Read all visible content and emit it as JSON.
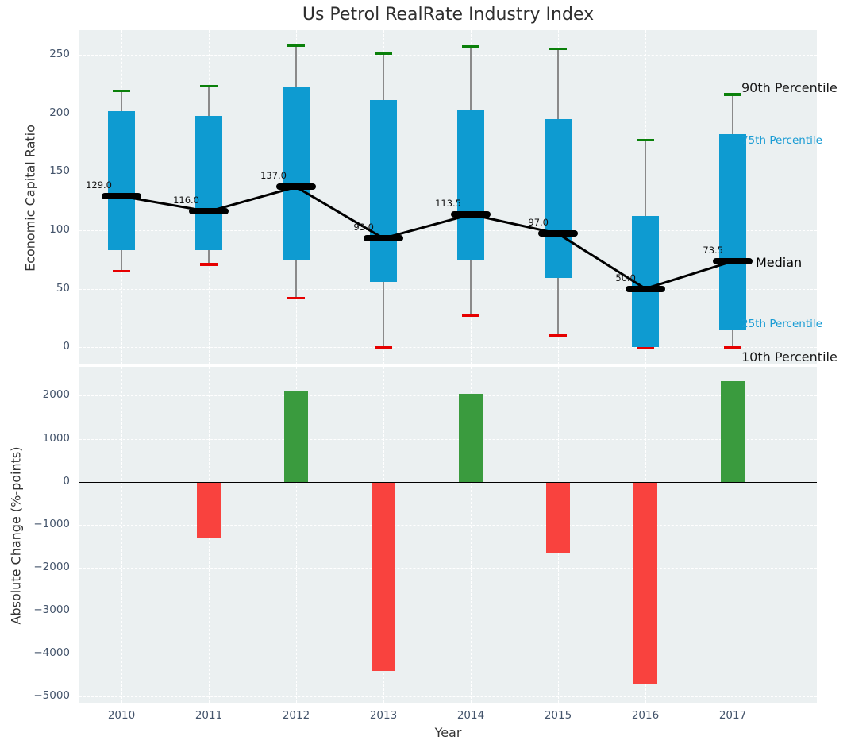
{
  "figure": {
    "title": "Us Petrol RealRate Industry Index",
    "plot_background": "#ebf0f1",
    "tick_color": "#44546b",
    "axis_label_color": "#333333"
  },
  "chart_data": [
    {
      "type": "box-whisker-with-median-line",
      "title": "Us Petrol RealRate Industry Index",
      "ylabel": "Economic Capital Ratio",
      "categories": [
        "2010",
        "2011",
        "2012",
        "2013",
        "2014",
        "2015",
        "2016",
        "2017"
      ],
      "series": [
        {
          "name": "90th Percentile",
          "role": "whisker-top-cap",
          "color": "#0a800a",
          "values": [
            219,
            223,
            258,
            251,
            257,
            255,
            177,
            216
          ]
        },
        {
          "name": "75th Percentile",
          "role": "box-top",
          "color": "#0e9bd1",
          "values": [
            202,
            198,
            222,
            211,
            203,
            195,
            112,
            182
          ]
        },
        {
          "name": "Median",
          "role": "median-line",
          "color": "#000000",
          "values": [
            129,
            116,
            137,
            93,
            113.5,
            97,
            50,
            73.5
          ]
        },
        {
          "name": "25th Percentile",
          "role": "box-bottom",
          "color": "#0e9bd1",
          "values": [
            83,
            83,
            75,
            56,
            75,
            59,
            0,
            15
          ]
        },
        {
          "name": "10th Percentile",
          "role": "whisker-bottom-cap",
          "color": "#e60000",
          "values": [
            65,
            71,
            42,
            0,
            27,
            10,
            0,
            0
          ]
        }
      ],
      "median_point_labels": [
        "129.0",
        "116.0",
        "137.0",
        "93.0",
        "113.5",
        "97.0",
        "50.0",
        "73.5"
      ],
      "right_labels": [
        {
          "text": "90th Percentile",
          "anchor_value": 221.5,
          "color": "#1a1a1a",
          "size": 16
        },
        {
          "text": "75th Percentile",
          "anchor_value": 176.5,
          "color": "#1a9cd4",
          "size": 13.5
        },
        {
          "text": "Median",
          "anchor_value": 72,
          "color": "#000000",
          "size": 16
        },
        {
          "text": "25th Percentile",
          "anchor_value": 19.5,
          "color": "#1a9cd4",
          "size": 13.5
        },
        {
          "text": "10th Percentile",
          "anchor_value": -8.5,
          "color": "#1a1a1a",
          "size": 16
        }
      ],
      "yticks": {
        "values": [
          250,
          200,
          150,
          100,
          50,
          0
        ],
        "labels": [
          "250",
          "200",
          "150",
          "100",
          "50",
          "0"
        ]
      },
      "ylim": [
        -15,
        271
      ],
      "grid": true,
      "box_color": "#0e9bd1",
      "whisker_color": "#8a8a8a"
    },
    {
      "type": "bar",
      "ylabel": "Absolute Change (%-points)",
      "xlabel": "Year",
      "categories": [
        "2010",
        "2011",
        "2012",
        "2013",
        "2014",
        "2015",
        "2016",
        "2017"
      ],
      "values": [
        null,
        -1300,
        2100,
        -4400,
        2050,
        -1650,
        -4700,
        2350
      ],
      "bar_colors": {
        "positive": "#3a9b3e",
        "negative": "#f9423e"
      },
      "yticks": {
        "values": [
          2000,
          1000,
          0,
          -1000,
          -2000,
          -3000,
          -4000,
          -5000
        ],
        "labels": [
          "2000",
          "1000",
          "0",
          "−1000",
          "−2000",
          "−3000",
          "−4000",
          "−5000"
        ]
      },
      "ylim": [
        -5150,
        2675
      ],
      "grid": true,
      "zero_line": true
    }
  ]
}
